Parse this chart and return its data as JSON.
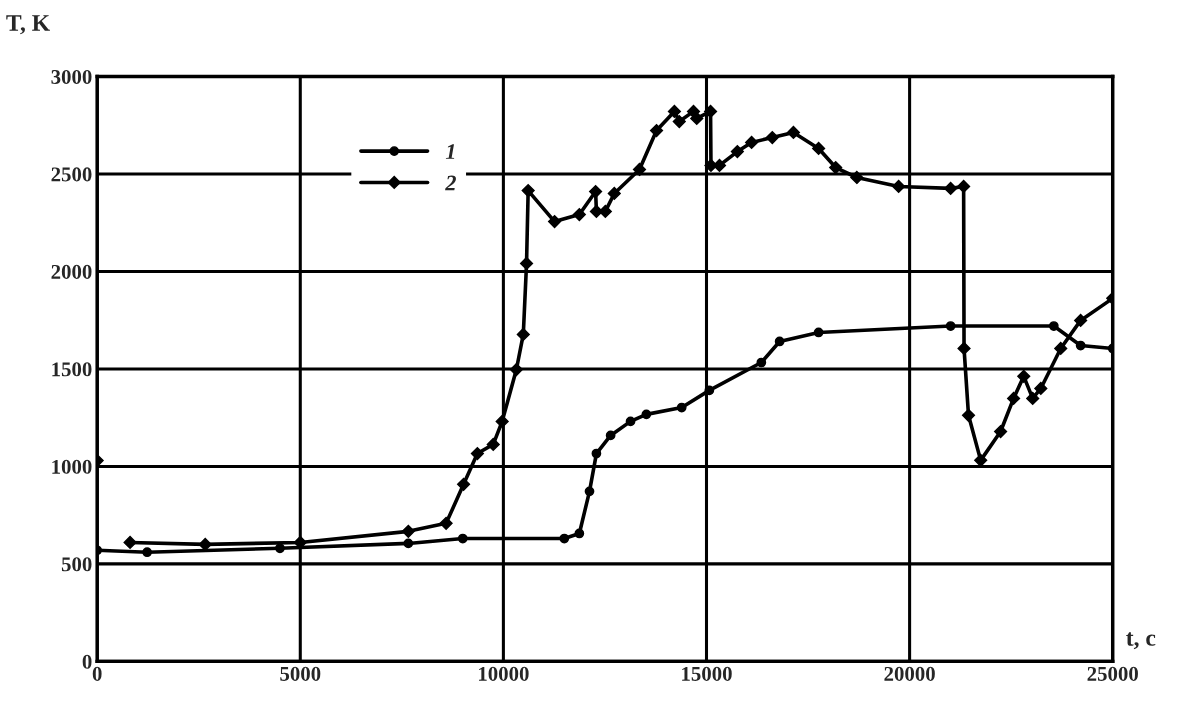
{
  "chart_data": {
    "type": "line",
    "xlabel": "t, c",
    "ylabel": "T, K",
    "xlim": [
      0,
      25000
    ],
    "ylim": [
      0,
      3000
    ],
    "xticks": [
      0,
      5000,
      10000,
      15000,
      20000,
      25000
    ],
    "yticks": [
      0,
      500,
      1000,
      1500,
      2000,
      2500,
      3000
    ],
    "grid": true,
    "legend": "top left",
    "line_style": "solid",
    "series": [
      {
        "name": "1",
        "color": "#000000",
        "marker": "circle",
        "x": [
          0,
          1230,
          4500,
          7660,
          9000,
          11500,
          11870,
          12120,
          12290,
          12640,
          13130,
          13520,
          14390,
          15070,
          16350,
          16800,
          17760,
          21010,
          23550,
          24210,
          25000
        ],
        "values": [
          570,
          560,
          580,
          605,
          630,
          630,
          656,
          872,
          1066,
          1159,
          1231,
          1267,
          1302,
          1390,
          1533,
          1641,
          1687,
          1720,
          1720,
          1620,
          1605
        ]
      },
      {
        "name": "2",
        "color": "#000000",
        "marker": "diamond",
        "x": [
          0,
          50,
          810,
          2660,
          5000,
          7660,
          8590,
          9020,
          9360,
          9750,
          9970,
          10320,
          10490,
          10570,
          10610,
          11260,
          11870,
          12270,
          12290,
          12510,
          12730,
          13350,
          13770,
          14210,
          14330,
          14680,
          14760,
          15100,
          15110,
          15320,
          15760,
          16110,
          16620,
          17140,
          17760,
          18180,
          18700,
          19730,
          21010,
          21330,
          21340,
          21450,
          21750,
          22240,
          22560,
          22810,
          23030,
          23230,
          23720,
          24210,
          25000
        ],
        "values": [
          1030,
          null,
          610,
          600,
          610,
          667,
          708,
          908,
          1066,
          1113,
          1231,
          1497,
          1677,
          2041,
          2415,
          2256,
          2292,
          2410,
          2308,
          2308,
          2400,
          2523,
          2723,
          2821,
          2769,
          2821,
          2785,
          2821,
          2544,
          2544,
          2615,
          2662,
          2687,
          2713,
          2631,
          2533,
          2482,
          2436,
          2426,
          2436,
          1605,
          1262,
          1031,
          1179,
          1349,
          1462,
          1349,
          1400,
          1605,
          1749,
          1862
        ]
      }
    ]
  }
}
